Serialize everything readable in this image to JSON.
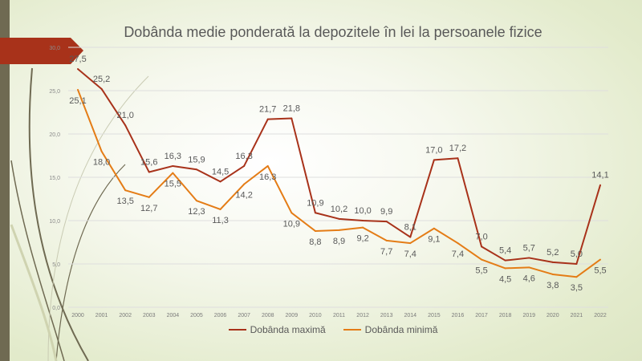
{
  "chart_data": {
    "type": "line",
    "title": "Dobânda medie ponderată la depozitele în lei la persoanele fizice",
    "xlabel": "",
    "ylabel": "",
    "ylim": [
      0,
      30
    ],
    "yticks": [
      "0,0",
      "5,0",
      "10,0",
      "15,0",
      "20,0",
      "25,0",
      "30,0"
    ],
    "grid": true,
    "legend_position": "bottom",
    "categories": [
      "2000",
      "2001",
      "2002",
      "2003",
      "2004",
      "2005",
      "2006",
      "2007",
      "2008",
      "2009",
      "2010",
      "2011",
      "2012",
      "2013",
      "2014",
      "2015",
      "2016",
      "2017",
      "2018",
      "2019",
      "2020",
      "2021",
      "2022"
    ],
    "series": [
      {
        "name": "Dobânda maximă",
        "color": "#a8321a",
        "values": [
          27.5,
          25.2,
          21.0,
          15.6,
          16.3,
          15.9,
          14.5,
          16.3,
          21.7,
          21.8,
          10.9,
          10.2,
          10.0,
          9.9,
          8.1,
          17.0,
          17.2,
          7.0,
          5.4,
          5.7,
          5.2,
          5.0,
          14.1
        ]
      },
      {
        "name": "Dobânda minimă",
        "color": "#e47c16",
        "values": [
          25.1,
          18.0,
          13.5,
          12.7,
          15.5,
          12.3,
          11.3,
          14.2,
          16.3,
          10.9,
          8.8,
          8.9,
          9.2,
          7.7,
          7.4,
          9.1,
          7.4,
          5.5,
          4.5,
          4.6,
          3.8,
          3.5,
          5.5
        ]
      }
    ]
  }
}
